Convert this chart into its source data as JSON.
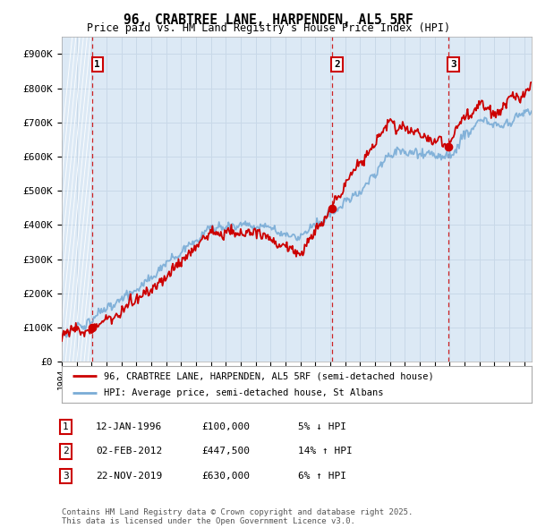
{
  "title": "96, CRABTREE LANE, HARPENDEN, AL5 5RF",
  "subtitle": "Price paid vs. HM Land Registry's House Price Index (HPI)",
  "ylim": [
    0,
    950000
  ],
  "yticks": [
    0,
    100000,
    200000,
    300000,
    400000,
    500000,
    600000,
    700000,
    800000,
    900000
  ],
  "ytick_labels": [
    "£0",
    "£100K",
    "£200K",
    "£300K",
    "£400K",
    "£500K",
    "£600K",
    "£700K",
    "£800K",
    "£900K"
  ],
  "background_color": "#ffffff",
  "plot_bg_color": "#dce9f5",
  "grid_color": "#c8d8e8",
  "sale_color": "#cc0000",
  "hpi_color": "#7aacd6",
  "transactions": [
    {
      "label": "1",
      "date_num": 1996.04,
      "price": 100000
    },
    {
      "label": "2",
      "date_num": 2012.09,
      "price": 447500
    },
    {
      "label": "3",
      "date_num": 2019.9,
      "price": 630000
    }
  ],
  "vline_dates": [
    1996.04,
    2012.09,
    2019.9
  ],
  "vline_color": "#cc0000",
  "legend_entry1": "96, CRABTREE LANE, HARPENDEN, AL5 5RF (semi-detached house)",
  "legend_entry2": "HPI: Average price, semi-detached house, St Albans",
  "table_rows": [
    [
      "1",
      "12-JAN-1996",
      "£100,000",
      "5% ↓ HPI"
    ],
    [
      "2",
      "02-FEB-2012",
      "£447,500",
      "14% ↑ HPI"
    ],
    [
      "3",
      "22-NOV-2019",
      "£630,000",
      "6% ↑ HPI"
    ]
  ],
  "footnote": "Contains HM Land Registry data © Crown copyright and database right 2025.\nThis data is licensed under the Open Government Licence v3.0.",
  "xmin": 1994.0,
  "xmax": 2025.5
}
